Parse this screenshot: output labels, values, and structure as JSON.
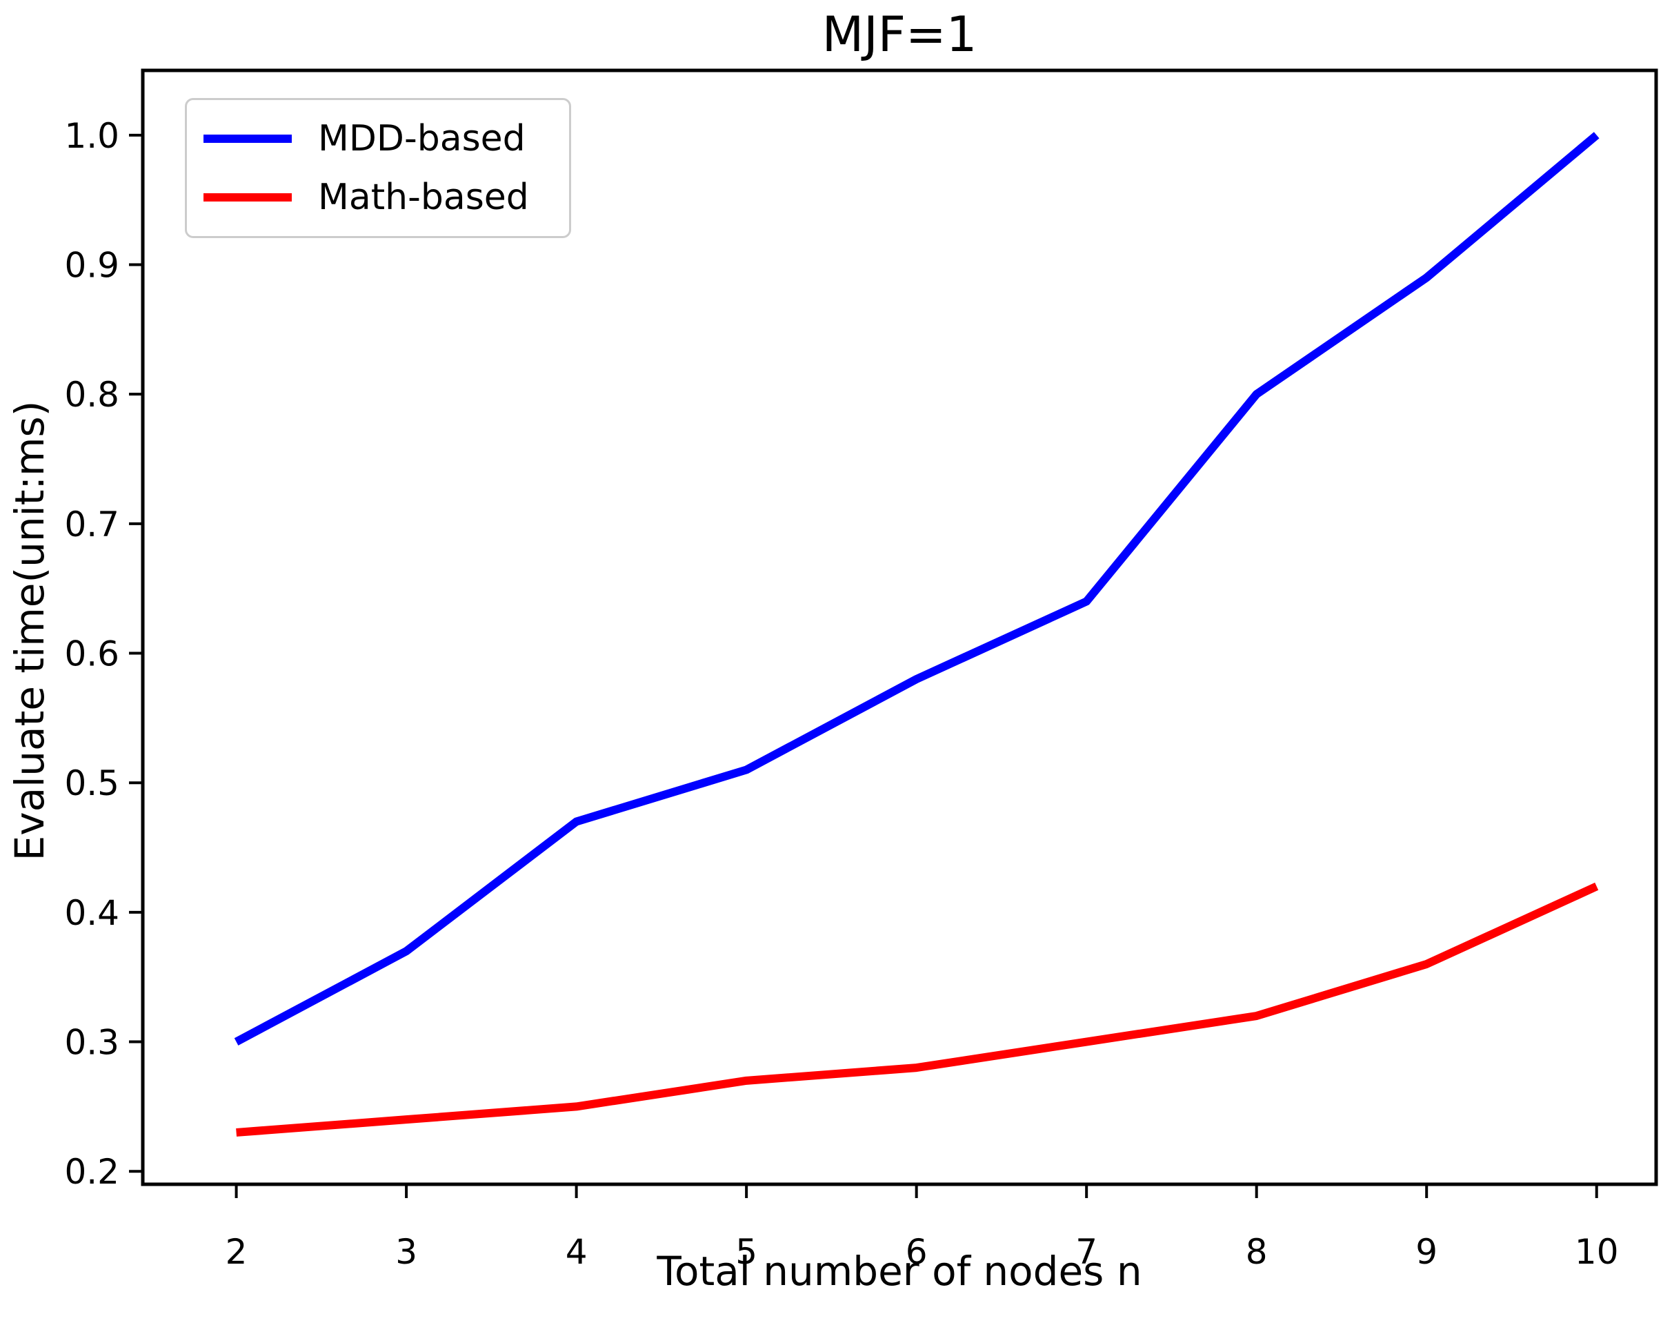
{
  "chart_data": {
    "type": "line",
    "title": "MJF=1",
    "xlabel": "Total number of nodes n",
    "ylabel": "Evaluate time(unit:ms)",
    "x": [
      2,
      3,
      4,
      5,
      6,
      7,
      8,
      9,
      10
    ],
    "series": [
      {
        "name": "MDD-based",
        "color": "#0000FF",
        "values": [
          0.3,
          0.37,
          0.47,
          0.51,
          0.58,
          0.64,
          0.8,
          0.89,
          1.0
        ]
      },
      {
        "name": "Math-based",
        "color": "#FF0000",
        "values": [
          0.23,
          0.24,
          0.25,
          0.27,
          0.28,
          0.3,
          0.32,
          0.36,
          0.42
        ]
      }
    ],
    "x_ticks": [
      2,
      3,
      4,
      5,
      6,
      7,
      8,
      9,
      10
    ],
    "y_ticks": [
      0.2,
      0.3,
      0.4,
      0.5,
      0.6,
      0.7,
      0.8,
      0.9,
      1.0
    ],
    "xlim": [
      1.45,
      10.35
    ],
    "ylim": [
      0.19,
      1.05
    ],
    "grid": false,
    "legend_position": "upper left",
    "line_width": 12,
    "axis_color": "#000000",
    "background": "#FFFFFF"
  },
  "legend": {
    "items": [
      {
        "label": "MDD-based",
        "color": "#0000FF"
      },
      {
        "label": "Math-based",
        "color": "#FF0000"
      }
    ]
  }
}
